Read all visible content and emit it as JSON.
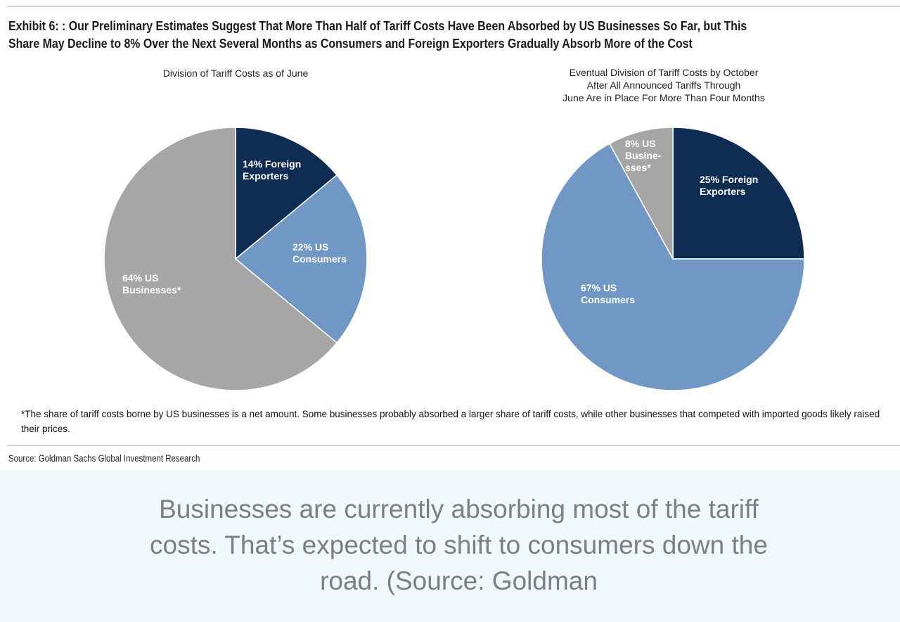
{
  "title_lines": [
    "Exhibit 6: : Our Preliminary Estimates Suggest That More Than Half of Tariff Costs Have Been Absorbed by US Businesses So Far, but This",
    "Share May Decline to 8% Over the Next Several Months as Consumers and Foreign Exporters Gradually Absorb More of the Cost"
  ],
  "chart_data": [
    {
      "type": "pie",
      "title": "Division of Tariff Costs as of June",
      "slices": [
        {
          "label": [
            "14% Foreign",
            "Exporters"
          ],
          "value": 14,
          "color": "#0f2d52"
        },
        {
          "label": [
            "22% US",
            "Consumers"
          ],
          "value": 22,
          "color": "#7198c4"
        },
        {
          "label": [
            "64% US",
            "Businesses*"
          ],
          "value": 64,
          "color": "#a6a6a6"
        }
      ],
      "start": "12 o'clock",
      "direction": "clockwise"
    },
    {
      "type": "pie",
      "title_lines": [
        "Eventual Division of Tariff Costs by October",
        "After All Announced Tariffs Through",
        "June Are in Place For More Than Four Months"
      ],
      "slices": [
        {
          "label": [
            "25% Foreign",
            "Exporters"
          ],
          "value": 25,
          "color": "#0f2d52"
        },
        {
          "label": [
            "67% US",
            "Consumers"
          ],
          "value": 67,
          "color": "#7198c4"
        },
        {
          "label": [
            "8% US",
            "Busine-",
            "sses*"
          ],
          "value": 8,
          "color": "#a6a6a6"
        }
      ],
      "start": "12 o'clock",
      "direction": "clockwise"
    }
  ],
  "footnote": "*The share of tariff costs borne by US businesses is a net amount. Some businesses probably absorbed a larger share of tariff costs, while other businesses that competed with imported goods likely raised their prices.",
  "source": "Source: Goldman Sachs Global Investment Research",
  "caption": "Businesses are currently absorbing most of the tariff costs. That’s expected to shift to consumers down the road. (Source: Goldman"
}
